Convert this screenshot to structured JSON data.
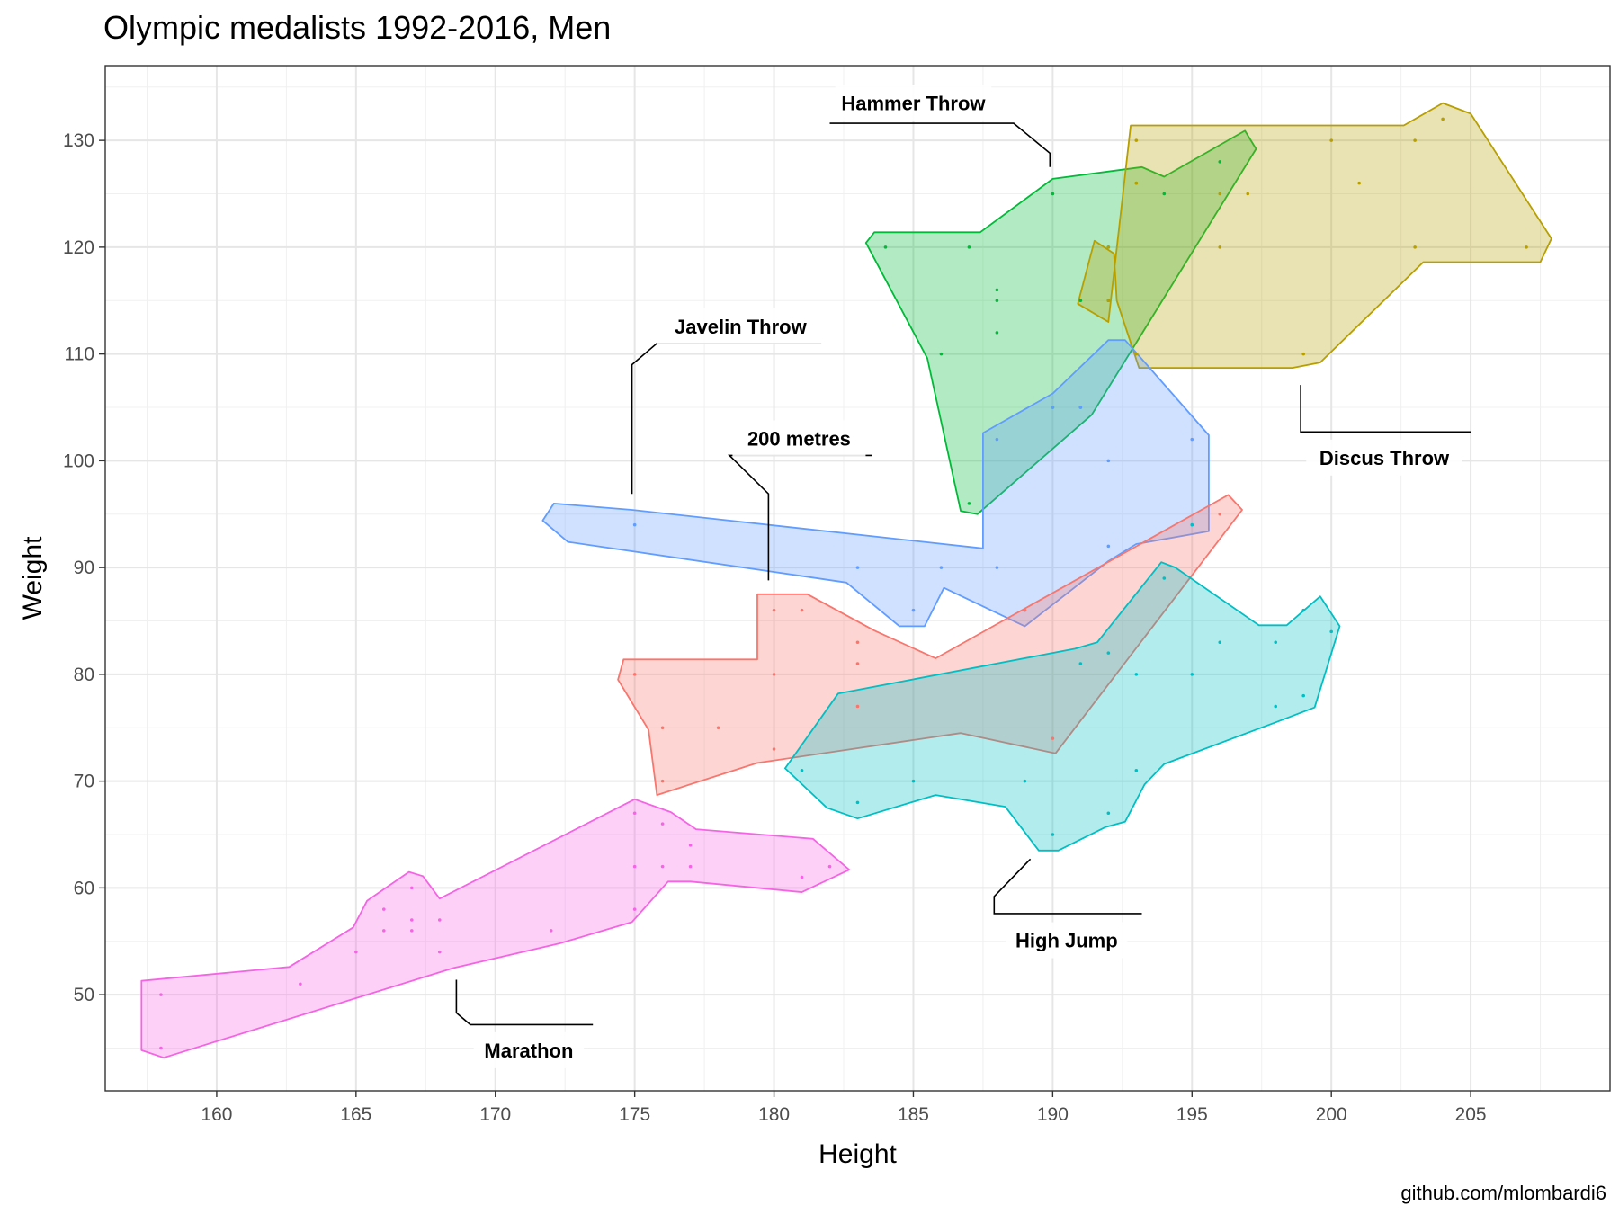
{
  "chart_data": {
    "type": "scatter",
    "title": "Olympic medalists 1992-2016, Men",
    "xlabel": "Height",
    "ylabel": "Weight",
    "xlim": [
      156,
      210
    ],
    "ylim": [
      41,
      137
    ],
    "x_ticks": [
      160,
      165,
      170,
      175,
      180,
      185,
      190,
      195,
      200,
      205
    ],
    "y_ticks": [
      50,
      60,
      70,
      80,
      90,
      100,
      110,
      120,
      130
    ],
    "grid": true,
    "theme": "bw",
    "caption": "github.com/mlombardi6",
    "series": [
      {
        "name": "Hammer Throw",
        "color": "#00BA38",
        "points": [
          [
            184,
            120
          ],
          [
            187,
            120
          ],
          [
            186,
            110
          ],
          [
            188,
            116
          ],
          [
            188,
            115
          ],
          [
            188,
            112
          ],
          [
            187,
            96
          ],
          [
            190,
            125
          ],
          [
            191,
            115
          ],
          [
            192,
            120
          ],
          [
            192,
            115
          ],
          [
            193,
            126
          ],
          [
            194,
            125
          ],
          [
            196,
            128
          ],
          [
            191,
            105
          ],
          [
            190,
            105
          ]
        ],
        "hull": [
          [
            183.6,
            121.4
          ],
          [
            187.4,
            121.4
          ],
          [
            190,
            126.4
          ],
          [
            193.2,
            127.5
          ],
          [
            194,
            126.6
          ],
          [
            196.9,
            130.9
          ],
          [
            197.3,
            129.2
          ],
          [
            191.4,
            104.3
          ],
          [
            187.3,
            95
          ],
          [
            186.7,
            95.3
          ],
          [
            185.5,
            109.6
          ],
          [
            183.3,
            120.4
          ]
        ]
      },
      {
        "name": "Discus Throw",
        "color": "#B79F00",
        "points": [
          [
            193,
            130
          ],
          [
            200,
            130
          ],
          [
            203,
            130
          ],
          [
            204,
            132
          ],
          [
            196,
            125
          ],
          [
            197,
            125
          ],
          [
            201,
            126
          ],
          [
            196,
            120
          ],
          [
            203,
            120
          ],
          [
            207,
            120
          ],
          [
            193,
            110
          ],
          [
            199,
            110
          ],
          [
            192,
            115
          ],
          [
            192,
            120
          ],
          [
            193,
            126
          ]
        ],
        "hull": [
          [
            192.8,
            131.4
          ],
          [
            202.6,
            131.4
          ],
          [
            204,
            133.5
          ],
          [
            205,
            132.5
          ],
          [
            207.9,
            120.8
          ],
          [
            207.5,
            118.6
          ],
          [
            203.3,
            118.6
          ],
          [
            199.6,
            109.2
          ],
          [
            198.6,
            108.7
          ],
          [
            193.1,
            108.7
          ],
          [
            192.3,
            115
          ],
          [
            192.2,
            119.4
          ],
          [
            191.5,
            120.6
          ],
          [
            190.9,
            114.7
          ],
          [
            192,
            113
          ]
        ]
      },
      {
        "name": "Javelin Throw",
        "color": "#619CFF",
        "points": [
          [
            175,
            94
          ],
          [
            183,
            90
          ],
          [
            185,
            86
          ],
          [
            186,
            90
          ],
          [
            188,
            90
          ],
          [
            188,
            102
          ],
          [
            189,
            86
          ],
          [
            190,
            105
          ],
          [
            191,
            105
          ],
          [
            192,
            100
          ],
          [
            192,
            92
          ],
          [
            195,
            102
          ],
          [
            195,
            94
          ]
        ],
        "hull": [
          [
            172.1,
            96
          ],
          [
            174.9,
            95.4
          ],
          [
            187.5,
            91.8
          ],
          [
            187.5,
            102.6
          ],
          [
            190,
            106.3
          ],
          [
            192,
            111.3
          ],
          [
            192.6,
            111.3
          ],
          [
            195.6,
            102.4
          ],
          [
            195.6,
            93.4
          ],
          [
            193,
            92.2
          ],
          [
            192,
            90.6
          ],
          [
            189,
            84.5
          ],
          [
            186.1,
            88.1
          ],
          [
            185.4,
            84.5
          ],
          [
            184.5,
            84.5
          ],
          [
            182.6,
            88.6
          ],
          [
            172.6,
            92.4
          ],
          [
            171.7,
            94.4
          ]
        ]
      },
      {
        "name": "200 metres",
        "color": "#F8766D",
        "points": [
          [
            175,
            80
          ],
          [
            176,
            75
          ],
          [
            176,
            70
          ],
          [
            178,
            75
          ],
          [
            180,
            86
          ],
          [
            180,
            80
          ],
          [
            180,
            73
          ],
          [
            181,
            86
          ],
          [
            183,
            83
          ],
          [
            183,
            81
          ],
          [
            183,
            77
          ],
          [
            189,
            86
          ],
          [
            190,
            74
          ],
          [
            196,
            95
          ]
        ],
        "hull": [
          [
            174.6,
            81.4
          ],
          [
            179.4,
            81.4
          ],
          [
            179.4,
            87.5
          ],
          [
            181.2,
            87.5
          ],
          [
            183.6,
            84.1
          ],
          [
            185.8,
            81.5
          ],
          [
            196.3,
            96.8
          ],
          [
            196.8,
            95.4
          ],
          [
            190.1,
            72.6
          ],
          [
            186.7,
            74.5
          ],
          [
            179.4,
            71.7
          ],
          [
            175.8,
            68.7
          ],
          [
            175.5,
            74.8
          ],
          [
            174.4,
            79.5
          ]
        ]
      },
      {
        "name": "High Jump",
        "color": "#00BFC4",
        "points": [
          [
            181,
            71
          ],
          [
            183,
            68
          ],
          [
            185,
            70
          ],
          [
            189,
            70
          ],
          [
            190,
            65
          ],
          [
            191,
            81
          ],
          [
            192,
            82
          ],
          [
            192,
            67
          ],
          [
            193,
            80
          ],
          [
            193,
            71
          ],
          [
            194,
            89
          ],
          [
            195,
            80
          ],
          [
            195,
            94
          ],
          [
            196,
            83
          ],
          [
            198,
            83
          ],
          [
            198,
            77
          ],
          [
            199,
            86
          ],
          [
            199,
            78
          ],
          [
            200,
            84
          ]
        ],
        "hull": [
          [
            180.4,
            71.2
          ],
          [
            182.3,
            78.2
          ],
          [
            190.8,
            82.4
          ],
          [
            191.6,
            83
          ],
          [
            193.9,
            90.5
          ],
          [
            194.4,
            90
          ],
          [
            197.4,
            84.6
          ],
          [
            198.4,
            84.6
          ],
          [
            199.6,
            87.3
          ],
          [
            200.3,
            84.5
          ],
          [
            199.4,
            76.9
          ],
          [
            198,
            75.5
          ],
          [
            194,
            71.6
          ],
          [
            193.3,
            69.7
          ],
          [
            192.6,
            66.2
          ],
          [
            191.9,
            65.7
          ],
          [
            190.2,
            63.5
          ],
          [
            189.5,
            63.5
          ],
          [
            188.3,
            67.6
          ],
          [
            185.8,
            68.7
          ],
          [
            183,
            66.5
          ],
          [
            181.9,
            67.5
          ]
        ]
      },
      {
        "name": "Marathon",
        "color": "#F564E3",
        "points": [
          [
            158,
            50
          ],
          [
            158,
            45
          ],
          [
            163,
            51
          ],
          [
            165,
            54
          ],
          [
            166,
            58
          ],
          [
            166,
            56
          ],
          [
            167,
            60
          ],
          [
            167,
            57
          ],
          [
            167,
            56
          ],
          [
            168,
            57
          ],
          [
            168,
            54
          ],
          [
            172,
            56
          ],
          [
            175,
            67
          ],
          [
            175,
            62
          ],
          [
            175,
            58
          ],
          [
            176,
            66
          ],
          [
            176,
            62
          ],
          [
            177,
            64
          ],
          [
            177,
            62
          ],
          [
            181,
            61
          ],
          [
            182,
            62
          ]
        ],
        "hull": [
          [
            157.3,
            51.3
          ],
          [
            162.6,
            52.6
          ],
          [
            164.9,
            56.3
          ],
          [
            165.4,
            58.8
          ],
          [
            166.9,
            61.5
          ],
          [
            167.4,
            61.1
          ],
          [
            168,
            59
          ],
          [
            175,
            68.3
          ],
          [
            176.3,
            67.1
          ],
          [
            177.2,
            65.5
          ],
          [
            181.4,
            64.6
          ],
          [
            182.7,
            61.7
          ],
          [
            181,
            59.6
          ],
          [
            177,
            60.6
          ],
          [
            176.2,
            60.6
          ],
          [
            174.9,
            56.8
          ],
          [
            172.3,
            54.8
          ],
          [
            168.5,
            52.5
          ],
          [
            158.1,
            44.1
          ],
          [
            157.3,
            44.8
          ]
        ]
      }
    ],
    "annotations": [
      {
        "text": "Hammer Throw",
        "series": "Hammer Throw",
        "leader": [
          [
            189.9,
            127.5
          ],
          [
            189.9,
            128.8
          ],
          [
            188.6,
            131.6
          ],
          [
            182,
            131.6
          ]
        ],
        "label_at": [
          185,
          133.5
        ],
        "anchor": "middle"
      },
      {
        "text": "Discus Throw",
        "series": "Discus Throw",
        "leader": [
          [
            198.9,
            107.1
          ],
          [
            198.9,
            102.7
          ],
          [
            205,
            102.7
          ]
        ],
        "label_at": [
          201.9,
          100.3
        ],
        "anchor": "middle"
      },
      {
        "text": "Javelin Throw",
        "series": "Javelin Throw",
        "leader": [
          [
            174.9,
            96.9
          ],
          [
            174.9,
            109
          ],
          [
            175.8,
            111
          ],
          [
            181.7,
            111
          ]
        ],
        "label_at": [
          178.8,
          112.6
        ],
        "anchor": "middle"
      },
      {
        "text": "200 metres",
        "series": "200 metres",
        "leader": [
          [
            179.8,
            88.8
          ],
          [
            179.8,
            96.9
          ],
          [
            178.4,
            100.5
          ],
          [
            183.5,
            100.5
          ]
        ],
        "label_at": [
          180.9,
          102.1
        ],
        "anchor": "middle"
      },
      {
        "text": "High Jump",
        "series": "High Jump",
        "leader": [
          [
            189.2,
            62.7
          ],
          [
            187.9,
            59.2
          ],
          [
            187.9,
            57.6
          ],
          [
            193.2,
            57.6
          ]
        ],
        "label_at": [
          190.5,
          55.1
        ],
        "anchor": "middle"
      },
      {
        "text": "Marathon",
        "series": "Marathon",
        "leader": [
          [
            168.6,
            51.4
          ],
          [
            168.6,
            48.3
          ],
          [
            169.1,
            47.2
          ],
          [
            173.5,
            47.2
          ]
        ],
        "label_at": [
          171.2,
          44.8
        ],
        "anchor": "middle"
      }
    ]
  }
}
